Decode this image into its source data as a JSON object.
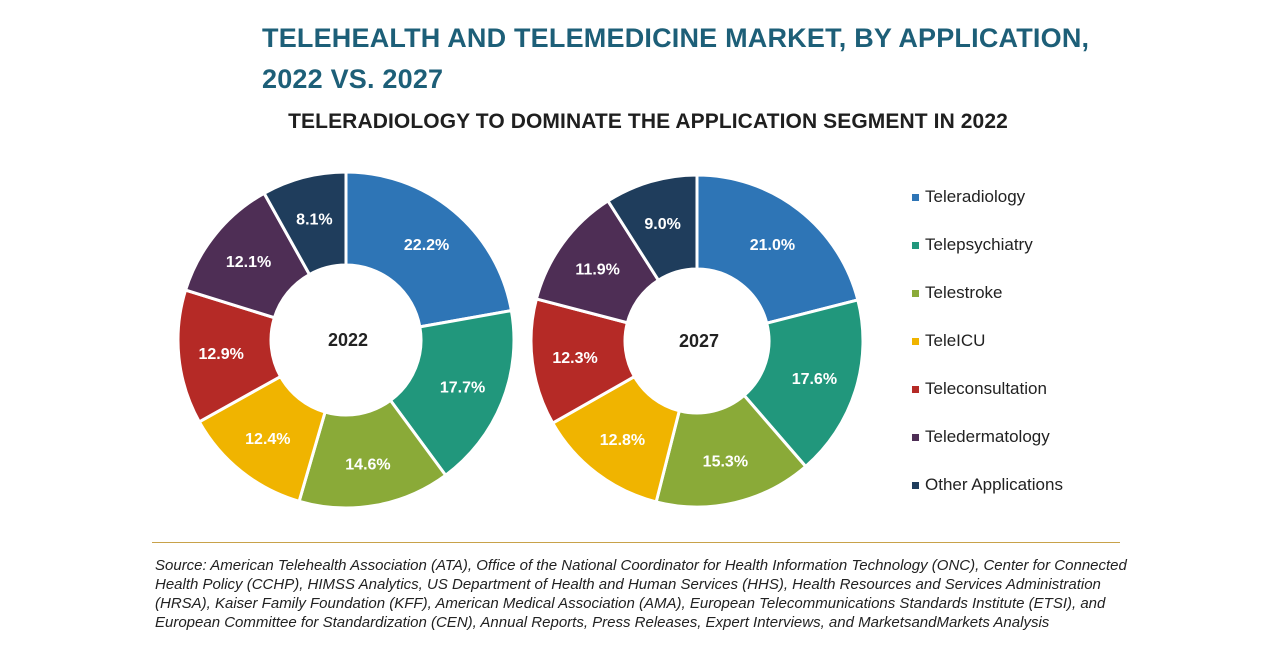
{
  "header": {
    "title_line1": "TELEHEALTH AND TELEMEDICINE MARKET, BY APPLICATION,",
    "title_line2": "2022 VS. 2027",
    "subtitle": "TELERADIOLOGY TO DOMINATE THE APPLICATION SEGMENT IN 2022"
  },
  "chart_data": {
    "type": "pie",
    "variant": "donut",
    "title": "TELEHEALTH AND TELEMEDICINE MARKET, BY APPLICATION, 2022 VS. 2027",
    "subtitle": "TELERADIOLOGY TO DOMINATE THE APPLICATION SEGMENT IN 2022",
    "categories": [
      "Teleradiology",
      "Telepsychiatry",
      "Telestroke",
      "TeleICU",
      "Teleconsultation",
      "Teledermatology",
      "Other Applications"
    ],
    "colors": [
      "#2e75b6",
      "#21977c",
      "#8aaa38",
      "#f0b400",
      "#b52a26",
      "#4e2e55",
      "#1f3d5c"
    ],
    "series": [
      {
        "name": "2022",
        "values": [
          22.2,
          17.7,
          14.6,
          12.4,
          12.9,
          12.1,
          8.1
        ],
        "labels": [
          "22.2%",
          "17.7%",
          "14.6%",
          "12.4%",
          "12.9%",
          "12.1%",
          "8.1%"
        ]
      },
      {
        "name": "2027",
        "values": [
          21.0,
          17.6,
          15.3,
          12.8,
          12.3,
          11.9,
          9.0
        ],
        "labels": [
          "21.0%",
          "17.6%",
          "15.3%",
          "12.8%",
          "12.3%",
          "11.9%",
          "9.0%"
        ]
      }
    ],
    "legend_position": "right",
    "unit": "%"
  },
  "source": "Source: American Telehealth Association (ATA), Office of the National Coordinator for Health Information Technology (ONC), Center for Connected Health Policy (CCHP), HIMSS Analytics, US Department of Health and Human Services (HHS), Health Resources and Services Administration (HRSA), Kaiser Family Foundation (KFF), American Medical Association (AMA), European Telecommunications Standards Institute (ETSI), and European Committee for Standardization (CEN), Annual Reports, Press Releases, Expert Interviews, and MarketsandMarkets Analysis"
}
